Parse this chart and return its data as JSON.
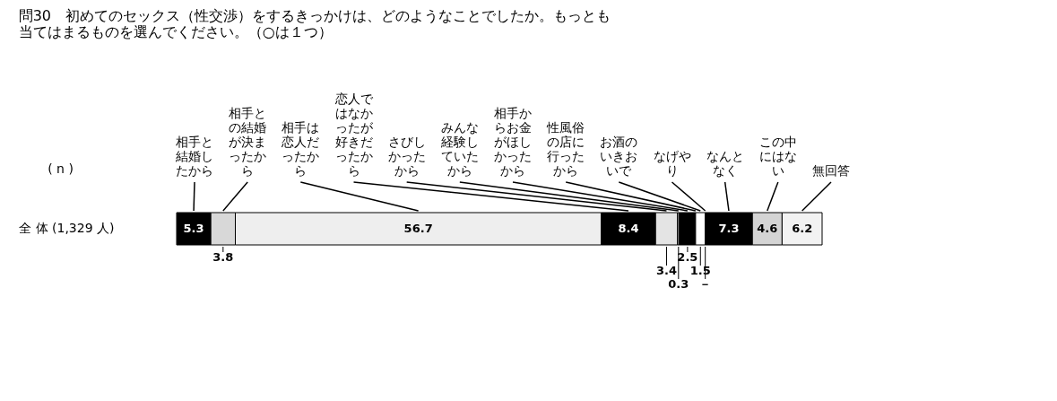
{
  "chart_data": {
    "type": "bar",
    "orientation": "horizontal",
    "stacked": true,
    "title": "問30　初めてのセックス（性交渉）をするきっかけは、どのようなことでしたか。もっとも当てはまるものを選んでください。（○は１つ）",
    "ylabel": "( n )",
    "categories": [
      "全 体 (1,329 人)"
    ],
    "tick_labels": "y",
    "legend": "top",
    "series": [
      {
        "name": "相手と結婚したから",
        "color": "#000000",
        "values": [
          5.3
        ],
        "value_labels": [
          "5.3"
        ]
      },
      {
        "name": "相手との結婚が決まったから",
        "color": "#d8d8d8",
        "values": [
          3.8
        ],
        "value_labels": [
          "3.8"
        ]
      },
      {
        "name": "相手は恋人だったから",
        "color": "#eeeeee",
        "values": [
          56.7
        ],
        "value_labels": [
          "56.7"
        ]
      },
      {
        "name": "恋人ではなかったが好きだったから",
        "color": "#000000",
        "values": [
          8.4
        ],
        "value_labels": [
          "8.4"
        ]
      },
      {
        "name": "さびしかったから",
        "color": "#e4e4e4",
        "values": [
          3.4
        ],
        "value_labels": [
          "3.4"
        ]
      },
      {
        "name": "みんな経験していたから",
        "color": "#999999",
        "values": [
          0.3
        ],
        "value_labels": [
          "0.3"
        ]
      },
      {
        "name": "相手からお金がほしかったから",
        "color": "#000000",
        "values": [
          2.5
        ],
        "value_labels": [
          "2.5"
        ]
      },
      {
        "name": "性風俗の店に行ったから",
        "color": "#000000",
        "values": [
          null
        ],
        "value_labels": [
          null
        ]
      },
      {
        "name": "お酒のいきおいで",
        "color": "#ffffff",
        "values": [
          1.5
        ],
        "value_labels": [
          "1.5"
        ]
      },
      {
        "name": "なげやり",
        "color": "#000000",
        "values": [
          0
        ],
        "value_labels": [
          "－"
        ]
      },
      {
        "name": "なんとなく",
        "color": "#000000",
        "values": [
          7.3
        ],
        "value_labels": [
          "7.3"
        ]
      },
      {
        "name": "この中にはない",
        "color": "#d4d4d4",
        "values": [
          4.6
        ],
        "value_labels": [
          "4.6"
        ]
      },
      {
        "name": "無回答",
        "color": "#f2f2f2",
        "values": [
          6.2
        ],
        "value_labels": [
          "6.2"
        ]
      }
    ]
  }
}
